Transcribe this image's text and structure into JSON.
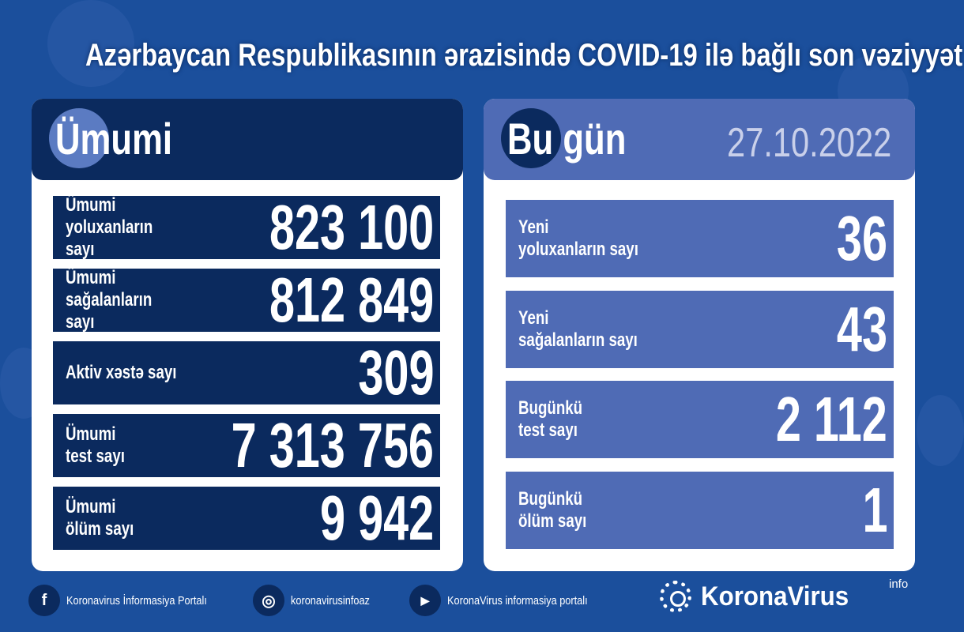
{
  "title": "Azərbaycan Respublikasının ərazisində COVID-19 ilə bağlı son vəziyyət",
  "total": {
    "header": "Ümumi",
    "rows": [
      {
        "label": "Ümumi\nyoluxanların sayı",
        "value": "823 100"
      },
      {
        "label": "Ümumi\nsağalanların sayı",
        "value": "812 849"
      },
      {
        "label": "Aktiv xəstə sayı",
        "value": "309"
      },
      {
        "label": "Ümumi\ntest sayı",
        "value": "7 313 756"
      },
      {
        "label": "Ümumi\nölüm sayı",
        "value": "9 942"
      }
    ]
  },
  "today": {
    "header": "Bu gün",
    "date": "27.10.2022",
    "rows": [
      {
        "label": "Yeni\nyoluxanların sayı",
        "value": "36"
      },
      {
        "label": "Yeni\nsağalanların sayı",
        "value": "43"
      },
      {
        "label": "Bugünkü\ntest sayı",
        "value": "2 112"
      },
      {
        "label": "Bugünkü\nölüm sayı",
        "value": "1"
      }
    ]
  },
  "footer": {
    "facebook": "Koronavirus İnformasiya Portalı",
    "instagram": "koronavirusinfoaz",
    "youtube": "KoronaVirus informasiya portalı",
    "brand": "KoronaVirus",
    "brand_sup": "info"
  },
  "colors": {
    "background": "#1b4f9c",
    "navy": "#0b2a5e",
    "today_blue": "#4f6bb5",
    "date": "#c9d0ea"
  }
}
